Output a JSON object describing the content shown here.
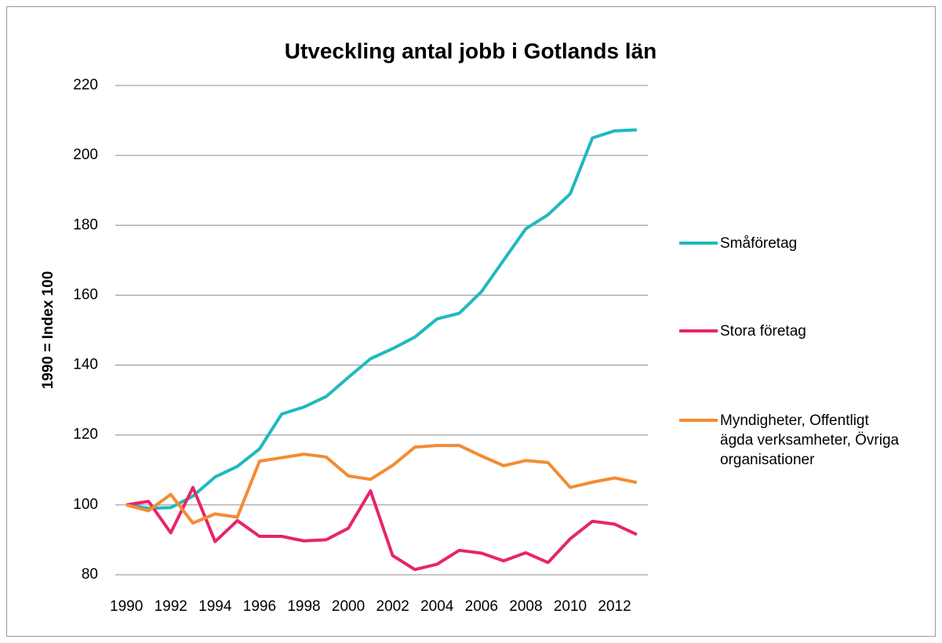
{
  "chart_data": {
    "type": "line",
    "title": "Utveckling antal jobb i Gotlands län",
    "y_label": "1990 = Index 100",
    "categories": [
      "1990",
      null,
      "1992",
      null,
      "1994",
      null,
      "1996",
      null,
      "1998",
      null,
      "2000",
      null,
      "2002",
      null,
      "2004",
      null,
      "2006",
      null,
      "2008",
      null,
      "2010",
      null,
      "2012",
      null
    ],
    "series": [
      {
        "name": "Småföretag",
        "color": "#1fb9c0",
        "values": [
          100,
          99,
          99.2,
          102.5,
          108,
          111,
          116,
          126,
          128,
          131,
          136.5,
          141.8,
          144.7,
          148,
          153.2,
          154.8,
          161,
          170,
          179,
          183,
          189,
          205,
          207,
          207.3
        ]
      },
      {
        "name": "Stora företag",
        "color": "#e8246a",
        "values": [
          100,
          101,
          92,
          105,
          89.5,
          95.5,
          91,
          91,
          89.7,
          90,
          93.3,
          104,
          85.5,
          81.5,
          83,
          87,
          86.2,
          84,
          86.3,
          83.5,
          90.3,
          95.3,
          94.5,
          91.5
        ]
      },
      {
        "name": "Myndigheter, Offentligt ägda verksamheter, Övriga organisationer",
        "color": "#f28c33",
        "values": [
          100,
          98.3,
          103,
          94.8,
          97.4,
          96.5,
          112.5,
          113.5,
          114.5,
          113.7,
          108.3,
          107.3,
          111.3,
          116.5,
          117,
          117,
          114,
          111.2,
          112.7,
          112.1,
          105,
          106.5,
          107.7,
          106.4
        ]
      }
    ],
    "ylim": [
      80,
      220
    ],
    "yticks": [
      80,
      100,
      120,
      140,
      160,
      180,
      200,
      220
    ],
    "grid": true,
    "legend": "right"
  }
}
